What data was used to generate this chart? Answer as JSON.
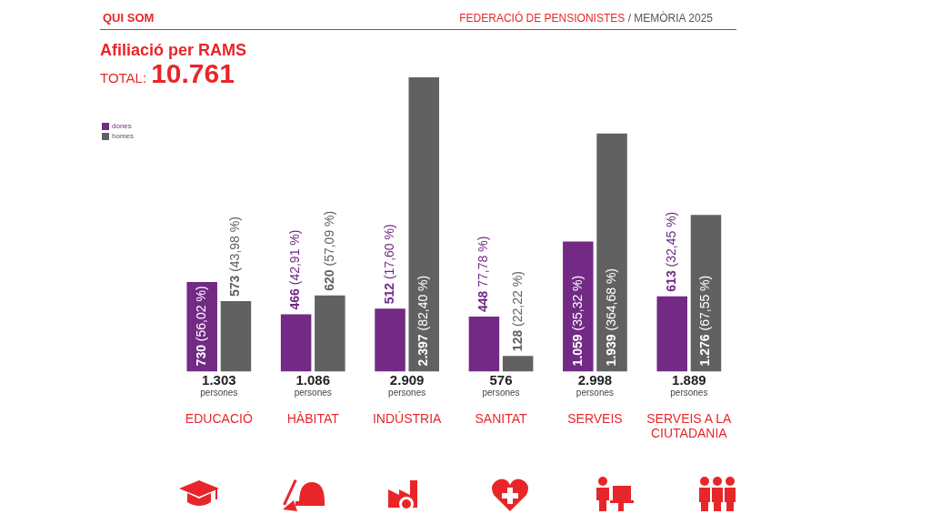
{
  "chart_data": {
    "type": "bar",
    "title": "Afiliació per RAMS",
    "subtitle": "TOTAL: 10.761",
    "annotations": [
      "QUI SOM",
      "FEDERACIÓ DE PENSIONISTES",
      "/ MEMÒRIA 2025"
    ],
    "categories": [
      "EDUCACIÓ",
      "HÀBITAT",
      "INDÚSTRIA",
      "SANITAT",
      "SERVEIS",
      "SERVEIS A LA CIUTADANIA"
    ],
    "series": [
      {
        "name": "dones",
        "color": "#722a85",
        "values": [
          730,
          466,
          512,
          448,
          1059,
          613
        ],
        "value_labels": [
          "730 (56,02 %)",
          "466 (42,91 %)",
          "512 (17,60 %)",
          "448 77,78 %)",
          "1.059 (35,32 %)",
          "613 (32,45 %)"
        ]
      },
      {
        "name": "homes",
        "color": "#616161",
        "values": [
          573,
          620,
          2397,
          128,
          1939,
          1276
        ],
        "value_labels": [
          "573 (43,98 %)",
          "620 (57,09 %)",
          "2.397 (82,40 %)",
          "128 (22,22 %)",
          "1.939 (364,68 %)",
          "1.276 (67,55 %)"
        ]
      }
    ],
    "totals": [
      "1.303 persones",
      "1.086 persones",
      "2.909 persones",
      "576 persones",
      "2.998 persones",
      "1.889 persones"
    ],
    "legend": "top left",
    "grid": false
  }
}
